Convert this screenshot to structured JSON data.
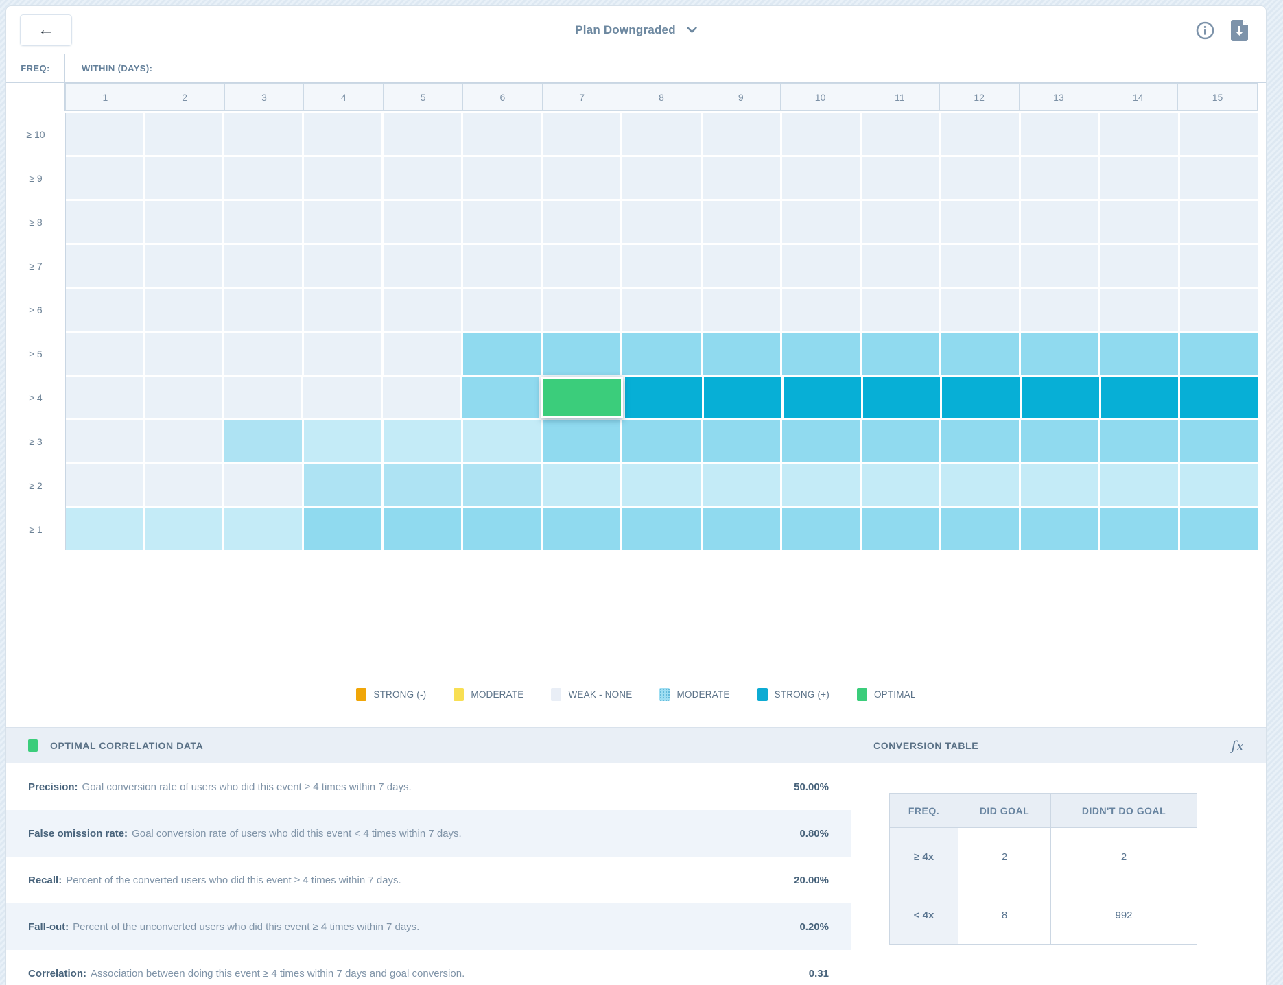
{
  "topbar": {
    "back_label": "←",
    "title": "Plan Downgraded"
  },
  "heatmap": {
    "freq_label": "FREQ:",
    "within_label": "WITHIN (DAYS):",
    "columns": [
      "1",
      "2",
      "3",
      "4",
      "5",
      "6",
      "7",
      "8",
      "9",
      "10",
      "11",
      "12",
      "13",
      "14",
      "15"
    ],
    "palette": {
      "0": "#EAF1F8",
      "1": "#C4EBF7",
      "2": "#AEE3F3",
      "3": "#90DAEF",
      "4": "#07AFD6",
      "5": "#3BCD7B"
    },
    "rows": [
      {
        "label": "≥ 10",
        "cells": [
          0,
          0,
          0,
          0,
          0,
          0,
          0,
          0,
          0,
          0,
          0,
          0,
          0,
          0,
          0
        ]
      },
      {
        "label": "≥ 9",
        "cells": [
          0,
          0,
          0,
          0,
          0,
          0,
          0,
          0,
          0,
          0,
          0,
          0,
          0,
          0,
          0
        ]
      },
      {
        "label": "≥ 8",
        "cells": [
          0,
          0,
          0,
          0,
          0,
          0,
          0,
          0,
          0,
          0,
          0,
          0,
          0,
          0,
          0
        ]
      },
      {
        "label": "≥ 7",
        "cells": [
          0,
          0,
          0,
          0,
          0,
          0,
          0,
          0,
          0,
          0,
          0,
          0,
          0,
          0,
          0
        ]
      },
      {
        "label": "≥ 6",
        "cells": [
          0,
          0,
          0,
          0,
          0,
          0,
          0,
          0,
          0,
          0,
          0,
          0,
          0,
          0,
          0
        ]
      },
      {
        "label": "≥ 5",
        "cells": [
          0,
          0,
          0,
          0,
          0,
          3,
          3,
          3,
          3,
          3,
          3,
          3,
          3,
          3,
          3
        ]
      },
      {
        "label": "≥ 4",
        "cells": [
          0,
          0,
          0,
          0,
          0,
          3,
          5,
          4,
          4,
          4,
          4,
          4,
          4,
          4,
          4
        ]
      },
      {
        "label": "≥ 3",
        "cells": [
          0,
          0,
          2,
          1,
          1,
          1,
          3,
          3,
          3,
          3,
          3,
          3,
          3,
          3,
          3
        ]
      },
      {
        "label": "≥ 2",
        "cells": [
          0,
          0,
          0,
          2,
          2,
          2,
          1,
          1,
          1,
          1,
          1,
          1,
          1,
          1,
          1
        ]
      },
      {
        "label": "≥ 1",
        "cells": [
          1,
          1,
          1,
          3,
          3,
          3,
          3,
          3,
          3,
          3,
          3,
          3,
          3,
          3,
          3
        ]
      }
    ],
    "optimal_level": 5
  },
  "legend": {
    "items": [
      {
        "label": "STRONG (-)",
        "color": "#F0A608",
        "pattern": false
      },
      {
        "label": "MODERATE",
        "color": "#F8DF53",
        "pattern": false
      },
      {
        "label": "WEAK - NONE",
        "color": "#E9EEF6",
        "pattern": false
      },
      {
        "label": "MODERATE",
        "color": "#9FDEF2",
        "pattern": true
      },
      {
        "label": "STRONG (+)",
        "color": "#0DABD3",
        "pattern": false
      },
      {
        "label": "OPTIMAL",
        "color": "#3BCD7B",
        "pattern": false
      }
    ]
  },
  "optimal_panel": {
    "title": "OPTIMAL CORRELATION DATA",
    "swatch_color": "#3BCD7B",
    "metrics": [
      {
        "name": "Precision:",
        "description": "Goal conversion rate of users who did this event ≥ 4 times within 7 days.",
        "value": "50.00%"
      },
      {
        "name": "False omission rate:",
        "description": "Goal conversion rate of users who did this event < 4 times within 7 days.",
        "value": "0.80%"
      },
      {
        "name": "Recall:",
        "description": "Percent of the converted users who did this event ≥ 4 times within 7 days.",
        "value": "20.00%"
      },
      {
        "name": "Fall-out:",
        "description": "Percent of the unconverted users who did this event ≥ 4 times within 7 days.",
        "value": "0.20%"
      },
      {
        "name": "Correlation:",
        "description": "Association between doing this event ≥ 4 times within 7 days and goal conversion.",
        "value": "0.31"
      }
    ]
  },
  "conversion_panel": {
    "title": "CONVERSION TABLE",
    "fx_label": "fx",
    "table": {
      "headers": [
        "FREQ.",
        "DID GOAL",
        "DIDN'T DO GOAL"
      ],
      "rows": [
        {
          "freq": "≥ 4x",
          "did": "2",
          "didnt": "2"
        },
        {
          "freq": "< 4x",
          "did": "8",
          "didnt": "992"
        }
      ]
    }
  }
}
